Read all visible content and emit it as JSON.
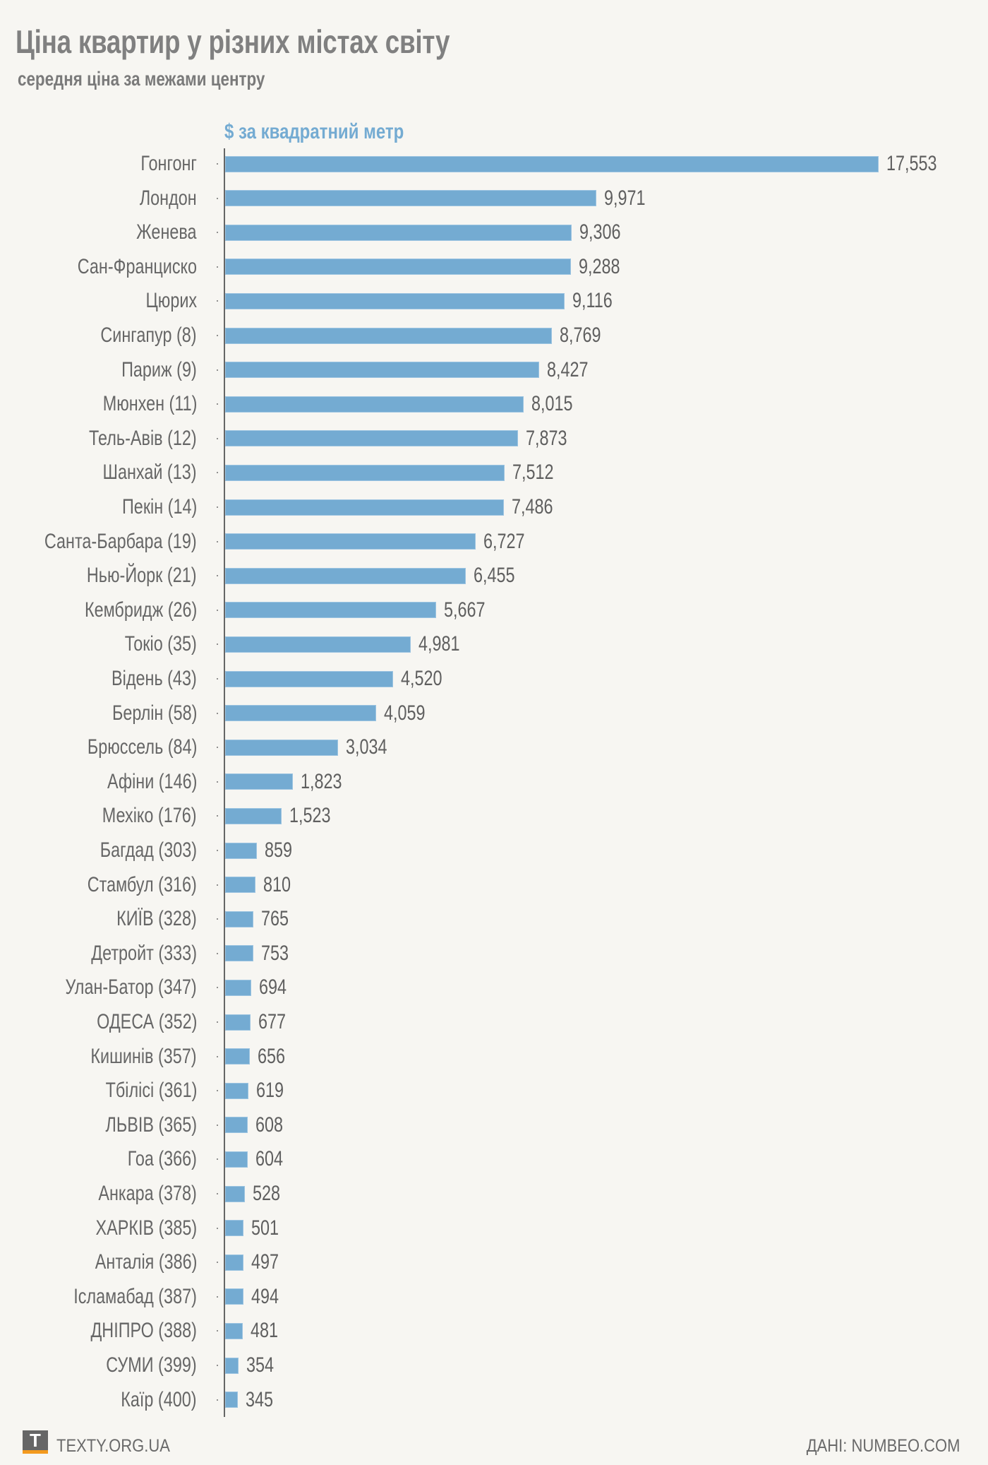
{
  "header": {
    "title": "Ціна квартир у різних містах світу",
    "subtitle": "середня ціна за межами центру"
  },
  "chart_data": {
    "type": "bar",
    "orientation": "horizontal",
    "title": "Ціна квартир у різних містах світу",
    "subtitle": "середня ціна за межами центру",
    "xlabel": "$ за квадратний метр",
    "ylabel": "",
    "value_format": "thousands-comma",
    "bar_color": "#74abd2",
    "grid": false,
    "legend": "none",
    "categories": [
      "Гонгонг",
      "Лондон",
      "Женева",
      "Сан-Франциско",
      "Цюрих",
      "Сингапур (8)",
      "Париж (9)",
      "Мюнхен (11)",
      "Тель-Авів (12)",
      "Шанхай (13)",
      "Пекін (14)",
      "Санта-Барбара (19)",
      "Нью-Йорк (21)",
      "Кембридж (26)",
      "Токіо (35)",
      "Відень (43)",
      "Берлін (58)",
      "Брюссель (84)",
      "Афіни (146)",
      "Мехіко (176)",
      "Багдад (303)",
      "Стамбул (316)",
      "КИЇВ (328)",
      "Детройт (333)",
      "Улан-Батор (347)",
      "ОДЕСА (352)",
      "Кишинів (357)",
      "Тбілісі (361)",
      "ЛЬВІВ (365)",
      "Гоа (366)",
      "Анкара (378)",
      "ХАРКІВ (385)",
      "Анталія (386)",
      "Ісламабад (387)",
      "ДНІПРО (388)",
      "СУМИ (399)",
      "Каїр (400)"
    ],
    "values": [
      17553,
      9971,
      9306,
      9288,
      9116,
      8769,
      8427,
      8015,
      7873,
      7512,
      7486,
      6727,
      6455,
      5667,
      4981,
      4520,
      4059,
      3034,
      1823,
      1523,
      859,
      810,
      765,
      753,
      694,
      677,
      656,
      619,
      608,
      604,
      528,
      501,
      497,
      494,
      481,
      354,
      345
    ],
    "value_labels": [
      "17,553",
      "9,971",
      "9,306",
      "9,288",
      "9,116",
      "8,769",
      "8,427",
      "8,015",
      "7,873",
      "7,512",
      "7,486",
      "6,727",
      "6,455",
      "5,667",
      "4,981",
      "4,520",
      "4,059",
      "3,034",
      "1,823",
      "1,523",
      "859",
      "810",
      "765",
      "753",
      "694",
      "677",
      "656",
      "619",
      "608",
      "604",
      "528",
      "501",
      "497",
      "494",
      "481",
      "354",
      "345"
    ],
    "xlim": [
      0,
      17553
    ]
  },
  "footer": {
    "logo_letter": "T",
    "logo_colors": {
      "box": "#666666",
      "underline": "#f39a1e"
    },
    "site": "TEXTY.ORG.UA",
    "source": "ДАНІ: NUMBEO.COM"
  }
}
